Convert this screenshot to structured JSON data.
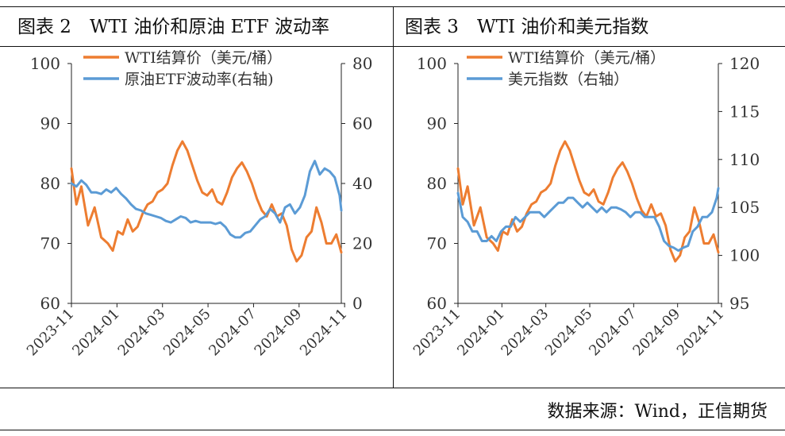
{
  "panels": [
    {
      "title": "图表 2　WTI 油价和原油 ETF 波动率"
    },
    {
      "title": "图表 3　WTI 油价和美元指数"
    }
  ],
  "source": "数据来源：Wind，正信期货",
  "colors": {
    "wti": "#ed7d31",
    "right": "#5b9bd5"
  },
  "chart_data": [
    {
      "type": "line",
      "x_ticks": [
        "2023-11",
        "2024-01",
        "2024-03",
        "2024-05",
        "2024-07",
        "2024-09",
        "2024-11"
      ],
      "y_left": {
        "ticks": [
          "100",
          "90",
          "80",
          "70",
          "60"
        ],
        "range": [
          60,
          100
        ]
      },
      "y_right": {
        "ticks": [
          "80",
          "60",
          "40",
          "20",
          "0"
        ],
        "range": [
          0,
          80
        ]
      },
      "grid": false,
      "legend": "top",
      "series": [
        {
          "name": "WTI结算价（美元/桶）",
          "axis": "left",
          "color": "#ed7d31",
          "values": [
            [
              0,
              82.5
            ],
            [
              3,
              76.5
            ],
            [
              6,
              79.5
            ],
            [
              10,
              73
            ],
            [
              14,
              76
            ],
            [
              18,
              71
            ],
            [
              22,
              70
            ],
            [
              25,
              68.8
            ],
            [
              28,
              72
            ],
            [
              31,
              71.5
            ],
            [
              34,
              74
            ],
            [
              37,
              72
            ],
            [
              40,
              72.8
            ],
            [
              43,
              75
            ],
            [
              46,
              76.5
            ],
            [
              49,
              77
            ],
            [
              52,
              78.5
            ],
            [
              55,
              79
            ],
            [
              58,
              80
            ],
            [
              61,
              83
            ],
            [
              64,
              85.5
            ],
            [
              67,
              87
            ],
            [
              70,
              85.5
            ],
            [
              73,
              83
            ],
            [
              76,
              80.5
            ],
            [
              79,
              78.5
            ],
            [
              82,
              78
            ],
            [
              85,
              79
            ],
            [
              88,
              77
            ],
            [
              91,
              76.5
            ],
            [
              94,
              78.5
            ],
            [
              97,
              81
            ],
            [
              100,
              82.5
            ],
            [
              103,
              83.5
            ],
            [
              106,
              82
            ],
            [
              109,
              80
            ],
            [
              112,
              77.5
            ],
            [
              115,
              75.5
            ],
            [
              118,
              74.5
            ],
            [
              121,
              76.5
            ],
            [
              124,
              74.5
            ],
            [
              127,
              75
            ],
            [
              130,
              73
            ],
            [
              133,
              69
            ],
            [
              136,
              67
            ],
            [
              139,
              68
            ],
            [
              142,
              71
            ],
            [
              145,
              72
            ],
            [
              148,
              76
            ],
            [
              151,
              73.5
            ],
            [
              154,
              70
            ],
            [
              157,
              70
            ],
            [
              160,
              71.5
            ],
            [
              163,
              68.5
            ]
          ]
        },
        {
          "name": "原油ETF波动率(右轴)",
          "axis": "right",
          "color": "#5b9bd5",
          "values": [
            [
              0,
              40
            ],
            [
              3,
              39
            ],
            [
              6,
              41
            ],
            [
              9,
              39.5
            ],
            [
              12,
              37
            ],
            [
              15,
              37
            ],
            [
              18,
              36.5
            ],
            [
              21,
              38
            ],
            [
              24,
              37
            ],
            [
              27,
              38.5
            ],
            [
              30,
              36.5
            ],
            [
              33,
              35
            ],
            [
              36,
              33
            ],
            [
              39,
              31.5
            ],
            [
              42,
              31
            ],
            [
              45,
              30
            ],
            [
              48,
              29.5
            ],
            [
              51,
              29
            ],
            [
              54,
              28.5
            ],
            [
              57,
              27.5
            ],
            [
              60,
              27
            ],
            [
              63,
              28
            ],
            [
              66,
              29
            ],
            [
              69,
              28.5
            ],
            [
              72,
              27
            ],
            [
              75,
              27.5
            ],
            [
              78,
              27
            ],
            [
              81,
              27
            ],
            [
              84,
              27
            ],
            [
              87,
              26.5
            ],
            [
              90,
              27
            ],
            [
              93,
              25.5
            ],
            [
              96,
              23
            ],
            [
              99,
              22
            ],
            [
              102,
              22
            ],
            [
              105,
              23.5
            ],
            [
              108,
              24
            ],
            [
              111,
              26
            ],
            [
              114,
              28
            ],
            [
              117,
              29
            ],
            [
              120,
              31.5
            ],
            [
              123,
              30
            ],
            [
              126,
              27
            ],
            [
              129,
              32
            ],
            [
              132,
              33
            ],
            [
              135,
              30
            ],
            [
              138,
              32
            ],
            [
              141,
              36
            ],
            [
              144,
              44
            ],
            [
              147,
              47.5
            ],
            [
              150,
              43
            ],
            [
              153,
              45
            ],
            [
              156,
              44
            ],
            [
              159,
              42
            ],
            [
              162,
              36
            ],
            [
              163,
              31
            ]
          ]
        }
      ]
    },
    {
      "type": "line",
      "x_ticks": [
        "2023-11",
        "2024-01",
        "2024-03",
        "2024-05",
        "2024-07",
        "2024-09",
        "2024-11"
      ],
      "y_left": {
        "ticks": [
          "100",
          "90",
          "80",
          "70",
          "60"
        ],
        "range": [
          60,
          100
        ]
      },
      "y_right": {
        "ticks": [
          "120",
          "115",
          "110",
          "105",
          "100",
          "95"
        ],
        "range": [
          95,
          120
        ]
      },
      "grid": false,
      "legend": "top",
      "series": [
        {
          "name": "WTI结算价（美元/桶）",
          "axis": "left",
          "color": "#ed7d31",
          "values": [
            [
              0,
              82.5
            ],
            [
              3,
              76.5
            ],
            [
              6,
              79.5
            ],
            [
              10,
              73
            ],
            [
              14,
              76
            ],
            [
              18,
              71
            ],
            [
              22,
              70
            ],
            [
              25,
              68.8
            ],
            [
              28,
              72
            ],
            [
              31,
              71.5
            ],
            [
              34,
              74
            ],
            [
              37,
              72
            ],
            [
              40,
              72.8
            ],
            [
              43,
              75
            ],
            [
              46,
              76.5
            ],
            [
              49,
              77
            ],
            [
              52,
              78.5
            ],
            [
              55,
              79
            ],
            [
              58,
              80
            ],
            [
              61,
              83
            ],
            [
              64,
              85.5
            ],
            [
              67,
              87
            ],
            [
              70,
              85.5
            ],
            [
              73,
              83
            ],
            [
              76,
              80.5
            ],
            [
              79,
              78.5
            ],
            [
              82,
              78
            ],
            [
              85,
              79
            ],
            [
              88,
              77
            ],
            [
              91,
              76.5
            ],
            [
              94,
              78.5
            ],
            [
              97,
              81
            ],
            [
              100,
              82.5
            ],
            [
              103,
              83.5
            ],
            [
              106,
              82
            ],
            [
              109,
              80
            ],
            [
              112,
              77.5
            ],
            [
              115,
              75.5
            ],
            [
              118,
              74.5
            ],
            [
              121,
              76.5
            ],
            [
              124,
              74.5
            ],
            [
              127,
              75
            ],
            [
              130,
              73
            ],
            [
              133,
              69
            ],
            [
              136,
              67
            ],
            [
              139,
              68
            ],
            [
              142,
              71
            ],
            [
              145,
              72
            ],
            [
              148,
              76
            ],
            [
              151,
              73.5
            ],
            [
              154,
              70
            ],
            [
              157,
              70
            ],
            [
              160,
              71.5
            ],
            [
              163,
              68.5
            ]
          ]
        },
        {
          "name": "美元指数（右轴）",
          "axis": "right",
          "color": "#5b9bd5",
          "values": [
            [
              0,
              106.5
            ],
            [
              3,
              104
            ],
            [
              6,
              103.5
            ],
            [
              9,
              102.5
            ],
            [
              12,
              102.5
            ],
            [
              15,
              101.5
            ],
            [
              18,
              101.5
            ],
            [
              21,
              102
            ],
            [
              24,
              101.5
            ],
            [
              27,
              102.5
            ],
            [
              30,
              103
            ],
            [
              33,
              103
            ],
            [
              36,
              104
            ],
            [
              39,
              103.5
            ],
            [
              42,
              104
            ],
            [
              45,
              104.5
            ],
            [
              48,
              104.5
            ],
            [
              51,
              104.5
            ],
            [
              54,
              104
            ],
            [
              57,
              104.5
            ],
            [
              60,
              105
            ],
            [
              63,
              105.5
            ],
            [
              66,
              105.5
            ],
            [
              69,
              106
            ],
            [
              72,
              106
            ],
            [
              75,
              105.5
            ],
            [
              78,
              105
            ],
            [
              81,
              105.5
            ],
            [
              84,
              105
            ],
            [
              87,
              104.5
            ],
            [
              90,
              105
            ],
            [
              93,
              104.5
            ],
            [
              96,
              105
            ],
            [
              99,
              105
            ],
            [
              102,
              104.8
            ],
            [
              105,
              104.5
            ],
            [
              108,
              104
            ],
            [
              111,
              104.5
            ],
            [
              114,
              104.5
            ],
            [
              117,
              104
            ],
            [
              120,
              104
            ],
            [
              123,
              104
            ],
            [
              126,
              103
            ],
            [
              129,
              101.5
            ],
            [
              132,
              101
            ],
            [
              135,
              100.8
            ],
            [
              138,
              100.5
            ],
            [
              141,
              100.8
            ],
            [
              144,
              101
            ],
            [
              147,
              102.5
            ],
            [
              150,
              103
            ],
            [
              153,
              104
            ],
            [
              156,
              104
            ],
            [
              159,
              104.5
            ],
            [
              162,
              106
            ],
            [
              163,
              107
            ]
          ]
        }
      ]
    }
  ]
}
